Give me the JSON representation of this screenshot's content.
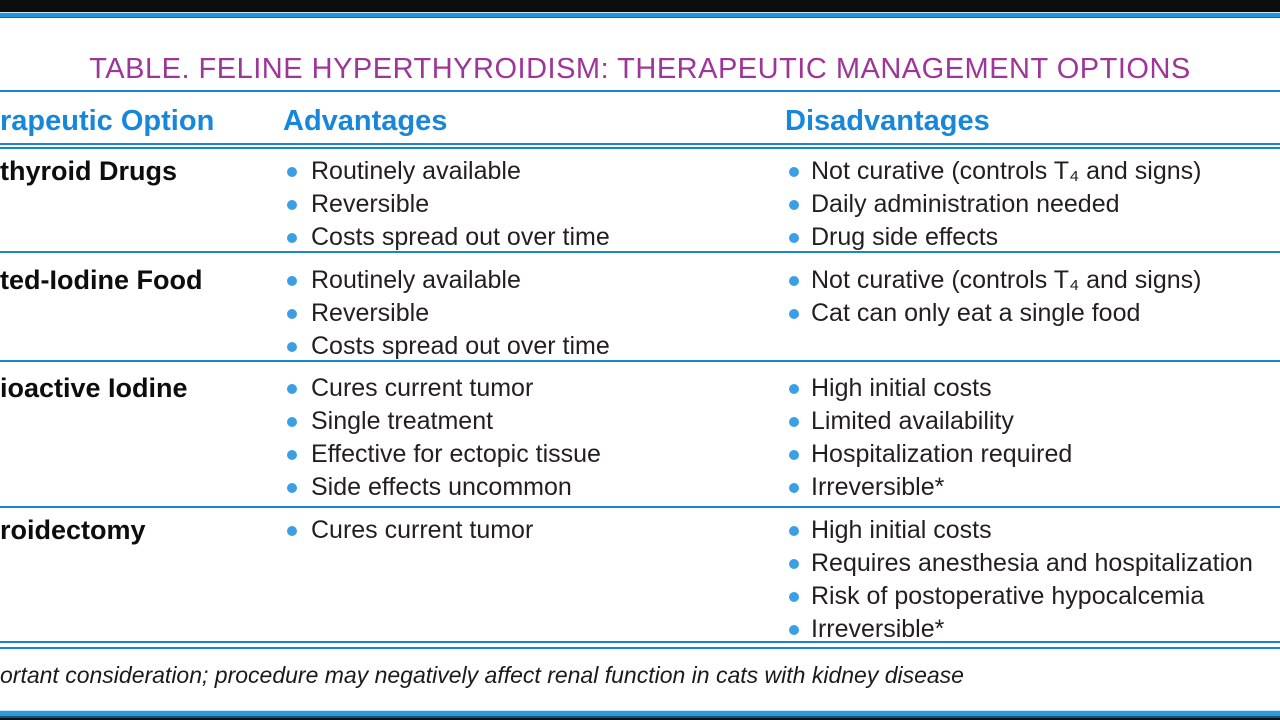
{
  "title": "TABLE. FELINE HYPERTHYROIDISM: THERAPEUTIC MANAGEMENT OPTIONS",
  "header": {
    "col_option": "rapeutic Option",
    "col_advantages": "Advantages",
    "col_disadvantages": "Disadvantages"
  },
  "rows": [
    {
      "option": "thyroid Drugs",
      "advantages": [
        "Routinely available",
        "Reversible",
        "Costs spread out over time"
      ],
      "disadvantages": [
        "Not curative (controls T₄ and signs)",
        "Daily administration needed",
        "Drug side effects"
      ]
    },
    {
      "option": "ted-Iodine Food",
      "advantages": [
        "Routinely available",
        "Reversible",
        "Costs spread out over time"
      ],
      "disadvantages": [
        "Not curative (controls T₄ and signs)",
        "Cat can only eat a single food"
      ]
    },
    {
      "option": "ioactive Iodine",
      "advantages": [
        "Cures current tumor",
        "Single treatment",
        "Effective for ectopic tissue",
        "Side effects uncommon"
      ],
      "disadvantages": [
        "High initial costs",
        "Limited availability",
        "Hospitalization required",
        "Irreversible*"
      ]
    },
    {
      "option": "roidectomy",
      "advantages": [
        "Cures current tumor"
      ],
      "disadvantages": [
        "High initial costs",
        "Requires anesthesia and hospitalization",
        "Risk of postoperative hypocalcemia",
        "Irreversible*"
      ]
    }
  ],
  "footnote": "ortant consideration; procedure may negatively affect renal function in cats with kidney disease",
  "colors": {
    "title": "#9e3598",
    "header_blue": "#1787db",
    "rule_blue": "#1a86d2",
    "bullet_blue": "#3c9fe3",
    "body_text": "#231f20"
  }
}
